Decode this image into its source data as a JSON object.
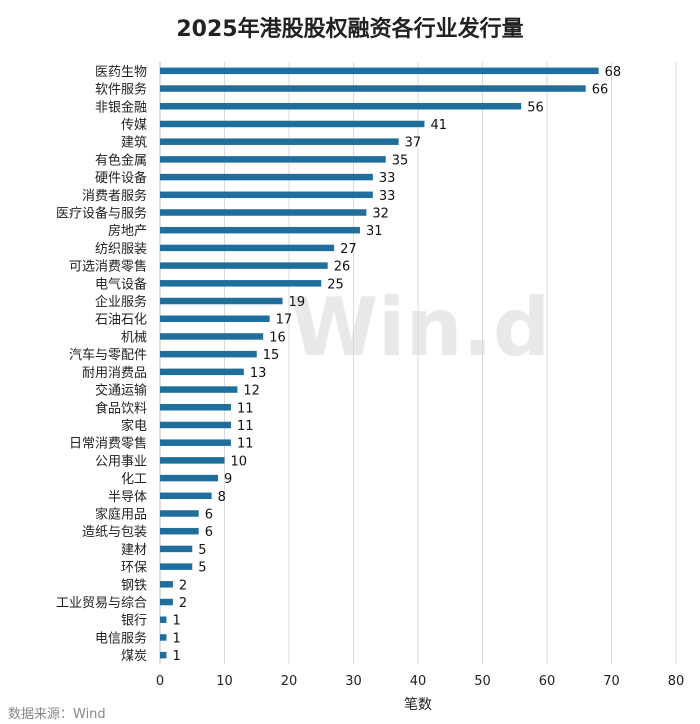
{
  "chart_data": {
    "type": "bar",
    "orientation": "horizontal",
    "title": "2025年港股股权融资各行业发行量",
    "categories": [
      "医药生物",
      "软件服务",
      "非银金融",
      "传媒",
      "建筑",
      "有色金属",
      "硬件设备",
      "消费者服务",
      "医疗设备与服务",
      "房地产",
      "纺织服装",
      "可选消费零售",
      "电气设备",
      "企业服务",
      "石油石化",
      "机械",
      "汽车与零配件",
      "耐用消费品",
      "交通运输",
      "食品饮料",
      "家电",
      "日常消费零售",
      "公用事业",
      "化工",
      "半导体",
      "家庭用品",
      "造纸与包装",
      "建材",
      "环保",
      "钢铁",
      "工业贸易与综合",
      "银行",
      "电信服务",
      "煤炭"
    ],
    "values": [
      68,
      66,
      56,
      41,
      37,
      35,
      33,
      33,
      32,
      31,
      27,
      26,
      25,
      19,
      17,
      16,
      15,
      13,
      12,
      11,
      11,
      11,
      10,
      9,
      8,
      6,
      6,
      5,
      5,
      2,
      2,
      1,
      1,
      1
    ],
    "xlabel": "笔数",
    "ylabel": "",
    "xlim": [
      0,
      80
    ],
    "xticks": [
      0,
      10,
      20,
      30,
      40,
      50,
      60,
      70,
      80
    ],
    "grid": true,
    "bar_color": "#1f6e9c",
    "grid_color": "#d9d9d9"
  },
  "source": "数据来源：Wind",
  "watermark": "Win.d"
}
